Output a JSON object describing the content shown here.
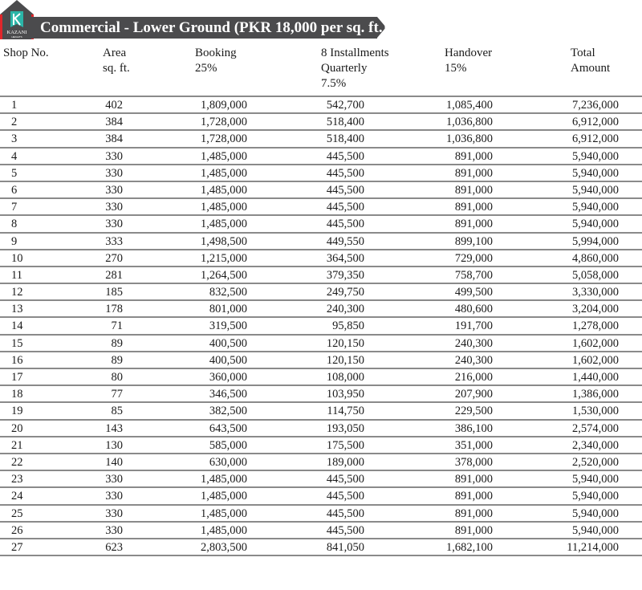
{
  "logo": {
    "text": "KAZANI",
    "subtext": "HEIGHTS",
    "colors": {
      "body": "#4b4b4d",
      "accent": "#e0262b",
      "mark": "#2bb5a8"
    }
  },
  "title": "Commercial - Lower Ground (PKR 18,000 per sq. ft.)",
  "columns": [
    {
      "label": "Shop No."
    },
    {
      "label": "Area\nsq. ft."
    },
    {
      "label": "Booking\n25%"
    },
    {
      "label": "8 Installments\nQuarterly\n7.5%"
    },
    {
      "label": "Handover\n 15%"
    },
    {
      "label": "Total\nAmount"
    }
  ],
  "rows": [
    [
      "1",
      "402",
      "1,809,000",
      "542,700",
      "1,085,400",
      "7,236,000"
    ],
    [
      "2",
      "384",
      "1,728,000",
      "518,400",
      "1,036,800",
      "6,912,000"
    ],
    [
      "3",
      "384",
      "1,728,000",
      "518,400",
      "1,036,800",
      "6,912,000"
    ],
    [
      "4",
      "330",
      "1,485,000",
      "445,500",
      "891,000",
      "5,940,000"
    ],
    [
      "5",
      "330",
      "1,485,000",
      "445,500",
      "891,000",
      "5,940,000"
    ],
    [
      "6",
      "330",
      "1,485,000",
      "445,500",
      "891,000",
      "5,940,000"
    ],
    [
      "7",
      "330",
      "1,485,000",
      "445,500",
      "891,000",
      "5,940,000"
    ],
    [
      "8",
      "330",
      "1,485,000",
      "445,500",
      "891,000",
      "5,940,000"
    ],
    [
      "9",
      "333",
      "1,498,500",
      "449,550",
      "899,100",
      "5,994,000"
    ],
    [
      "10",
      "270",
      "1,215,000",
      "364,500",
      "729,000",
      "4,860,000"
    ],
    [
      "11",
      "281",
      "1,264,500",
      "379,350",
      "758,700",
      "5,058,000"
    ],
    [
      "12",
      "185",
      "832,500",
      "249,750",
      "499,500",
      "3,330,000"
    ],
    [
      "13",
      "178",
      "801,000",
      "240,300",
      "480,600",
      "3,204,000"
    ],
    [
      "14",
      "71",
      "319,500",
      "95,850",
      "191,700",
      "1,278,000"
    ],
    [
      "15",
      "89",
      "400,500",
      "120,150",
      "240,300",
      "1,602,000"
    ],
    [
      "16",
      "89",
      "400,500",
      "120,150",
      "240,300",
      "1,602,000"
    ],
    [
      "17",
      "80",
      "360,000",
      "108,000",
      "216,000",
      "1,440,000"
    ],
    [
      "18",
      "77",
      "346,500",
      "103,950",
      "207,900",
      "1,386,000"
    ],
    [
      "19",
      "85",
      "382,500",
      "114,750",
      "229,500",
      "1,530,000"
    ],
    [
      "20",
      "143",
      "643,500",
      "193,050",
      "386,100",
      "2,574,000"
    ],
    [
      "21",
      "130",
      "585,000",
      "175,500",
      "351,000",
      "2,340,000"
    ],
    [
      "22",
      "140",
      "630,000",
      "189,000",
      "378,000",
      "2,520,000"
    ],
    [
      "23",
      "330",
      "1,485,000",
      "445,500",
      "891,000",
      "5,940,000"
    ],
    [
      "24",
      "330",
      "1,485,000",
      "445,500",
      "891,000",
      "5,940,000"
    ],
    [
      "25",
      "330",
      "1,485,000",
      "445,500",
      "891,000",
      "5,940,000"
    ],
    [
      "26",
      "330",
      "1,485,000",
      "445,500",
      "891,000",
      "5,940,000"
    ],
    [
      "27",
      "623",
      "2,803,500",
      "841,050",
      "1,682,100",
      "11,214,000"
    ]
  ]
}
